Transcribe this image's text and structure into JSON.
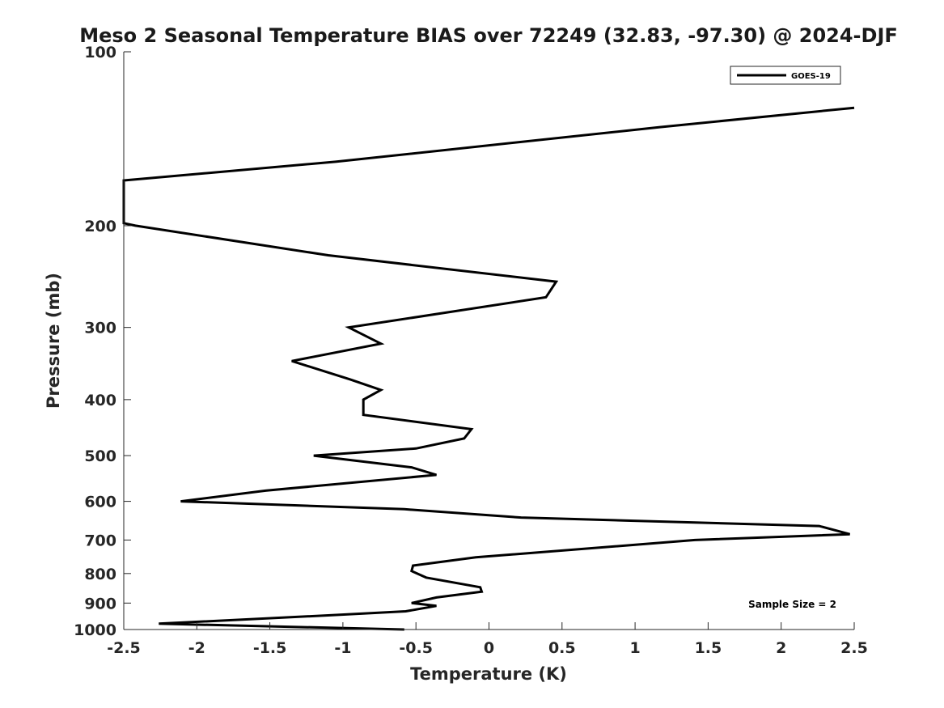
{
  "chart_data": {
    "type": "line",
    "title": "Meso 2 Seasonal Temperature BIAS over 72249 (32.83, -97.30) @ 2024-DJF",
    "xlabel": "Temperature (K)",
    "ylabel": "Pressure (mb)",
    "xlim": [
      -2.5,
      2.5
    ],
    "ylim": [
      1000,
      100
    ],
    "y_scale": "log",
    "y_reversed": true,
    "x_ticks": [
      "-2.5",
      "-2",
      "-1.5",
      "-1",
      "-0.5",
      "0",
      "0.5",
      "1",
      "1.5",
      "2",
      "2.5"
    ],
    "y_ticks": [
      "100",
      "200",
      "300",
      "400",
      "500",
      "600",
      "700",
      "800",
      "900",
      "1000"
    ],
    "grid": false,
    "legend_position": "top-right",
    "annotation": "Sample Size = 2",
    "series": [
      {
        "name": "GOES-19",
        "color": "#000000",
        "points": [
          {
            "t": 2.5,
            "p": 125
          },
          {
            "t": 1.17,
            "p": 135
          },
          {
            "t": -1.05,
            "p": 155
          },
          {
            "t": -2.5,
            "p": 167
          },
          {
            "t": -2.5,
            "p": 198
          },
          {
            "t": -2.42,
            "p": 200
          },
          {
            "t": -1.1,
            "p": 225
          },
          {
            "t": 0.46,
            "p": 250
          },
          {
            "t": 0.39,
            "p": 266
          },
          {
            "t": -0.96,
            "p": 300
          },
          {
            "t": -0.74,
            "p": 320
          },
          {
            "t": -1.35,
            "p": 343
          },
          {
            "t": -0.95,
            "p": 369
          },
          {
            "t": -0.74,
            "p": 385
          },
          {
            "t": -0.86,
            "p": 400
          },
          {
            "t": -0.86,
            "p": 425
          },
          {
            "t": -0.12,
            "p": 450
          },
          {
            "t": -0.17,
            "p": 467
          },
          {
            "t": -0.5,
            "p": 486
          },
          {
            "t": -1.2,
            "p": 500
          },
          {
            "t": -0.53,
            "p": 524
          },
          {
            "t": -0.36,
            "p": 540
          },
          {
            "t": -1.53,
            "p": 575
          },
          {
            "t": -2.11,
            "p": 600
          },
          {
            "t": -0.58,
            "p": 619
          },
          {
            "t": 0.22,
            "p": 640
          },
          {
            "t": 2.26,
            "p": 662
          },
          {
            "t": 2.47,
            "p": 684
          },
          {
            "t": 1.41,
            "p": 700
          },
          {
            "t": -0.09,
            "p": 750
          },
          {
            "t": -0.52,
            "p": 775
          },
          {
            "t": -0.53,
            "p": 792
          },
          {
            "t": -0.43,
            "p": 813
          },
          {
            "t": -0.06,
            "p": 845
          },
          {
            "t": -0.05,
            "p": 860
          },
          {
            "t": -0.36,
            "p": 880
          },
          {
            "t": -0.53,
            "p": 900
          },
          {
            "t": -0.36,
            "p": 910
          },
          {
            "t": -0.57,
            "p": 930
          },
          {
            "t": -1.1,
            "p": 945
          },
          {
            "t": -2.26,
            "p": 977
          },
          {
            "t": -0.58,
            "p": 1000
          }
        ]
      }
    ]
  }
}
